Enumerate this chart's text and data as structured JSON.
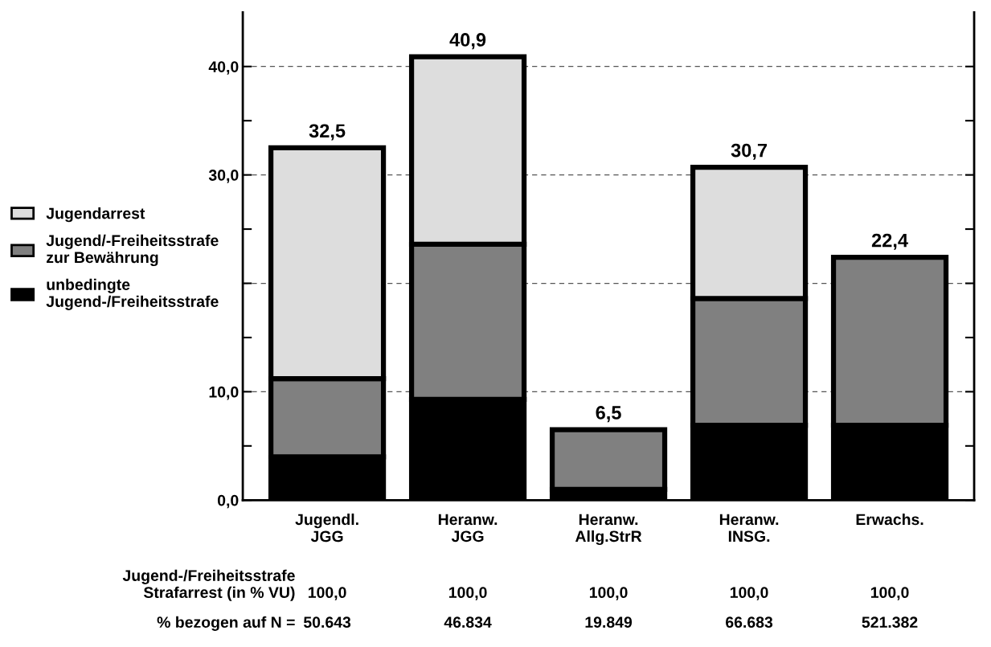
{
  "chart_data": {
    "type": "bar",
    "stacked": true,
    "categories": [
      "Jugendl.\nJGG",
      "Heranw.\nJGG",
      "Heranw.\nAllg.StrR",
      "Heranw.\nINSG.",
      "Erwachs."
    ],
    "series": [
      {
        "name": "unbedingte\nJugend-/Freiheitsstrafe",
        "color": "#000000",
        "values": [
          4.0,
          9.3,
          1.0,
          6.9,
          6.9
        ]
      },
      {
        "name": "Jugend/-Freiheitsstrafe\nzur Bewährung",
        "color": "#808080",
        "values": [
          7.2,
          14.3,
          5.5,
          11.7,
          15.5
        ]
      },
      {
        "name": "Jugendarrest",
        "color": "#dddddd",
        "values": [
          21.3,
          17.3,
          null,
          12.1,
          null
        ]
      }
    ],
    "totals": [
      "32,5",
      "40,9",
      "6,5",
      "30,7",
      "22,4"
    ],
    "ylim": [
      0,
      45
    ],
    "yticks": [
      {
        "value": 0,
        "label": "0,0"
      },
      {
        "value": 5,
        "label": null
      },
      {
        "value": 10,
        "label": "10,0"
      },
      {
        "value": 15,
        "label": null
      },
      {
        "value": 20,
        "label": null
      },
      {
        "value": 25,
        "label": null
      },
      {
        "value": 30,
        "label": "30,0"
      },
      {
        "value": 35,
        "label": null
      },
      {
        "value": 40,
        "label": "40,0"
      }
    ],
    "grid": "y",
    "legend": "left",
    "annotations": [
      "Jugend-/Freiheitsstrafe\nStrafarrest (in % VU)",
      "100,0",
      "100,0",
      "100,0",
      "100,0",
      "100,0",
      "% bezogen auf N =",
      "50.643",
      "46.834",
      "19.849",
      "66.683",
      "521.382"
    ]
  }
}
